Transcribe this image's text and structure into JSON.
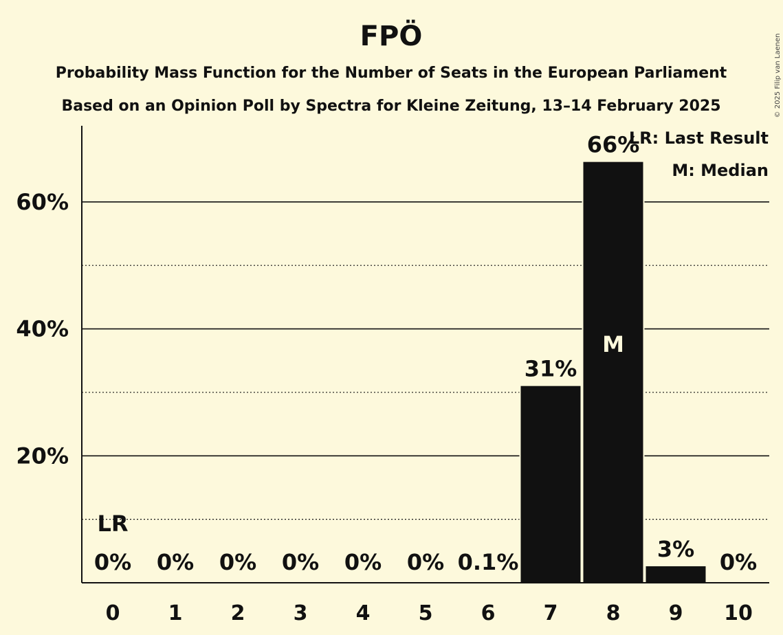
{
  "chart_data": {
    "type": "bar",
    "title": "FPÖ",
    "subtitle_lines": [
      "Probability Mass Function for the Number of Seats in the European Parliament",
      "Based on an Opinion Poll by Spectra for Kleine Zeitung, 13–14 February 2025"
    ],
    "categories": [
      "0",
      "1",
      "2",
      "3",
      "4",
      "5",
      "6",
      "7",
      "8",
      "9",
      "10"
    ],
    "values": [
      0,
      0,
      0,
      0,
      0,
      0,
      0.1,
      31,
      66.3,
      2.6,
      0
    ],
    "value_labels": [
      "0%",
      "0%",
      "0%",
      "0%",
      "0%",
      "0%",
      "0.1%",
      "31%",
      "66%",
      "3%",
      "0%"
    ],
    "ylim": [
      0,
      72
    ],
    "y_ticks": [
      {
        "value": 20,
        "label": "20%"
      },
      {
        "value": 40,
        "label": "40%"
      },
      {
        "value": 60,
        "label": "60%"
      }
    ],
    "y_minor_ticks": [
      10,
      30,
      50
    ],
    "last_result_category": "0",
    "last_result_marker": "LR",
    "median_category": "8",
    "median_marker": "M",
    "legend": [
      "LR: Last Result",
      "M: Median"
    ],
    "copyright": "© 2025 Filip van Laenen",
    "colors": {
      "background": "#fdf9dc",
      "bar": "#111111",
      "text": "#111111",
      "median_text": "#fdf9dc"
    }
  }
}
